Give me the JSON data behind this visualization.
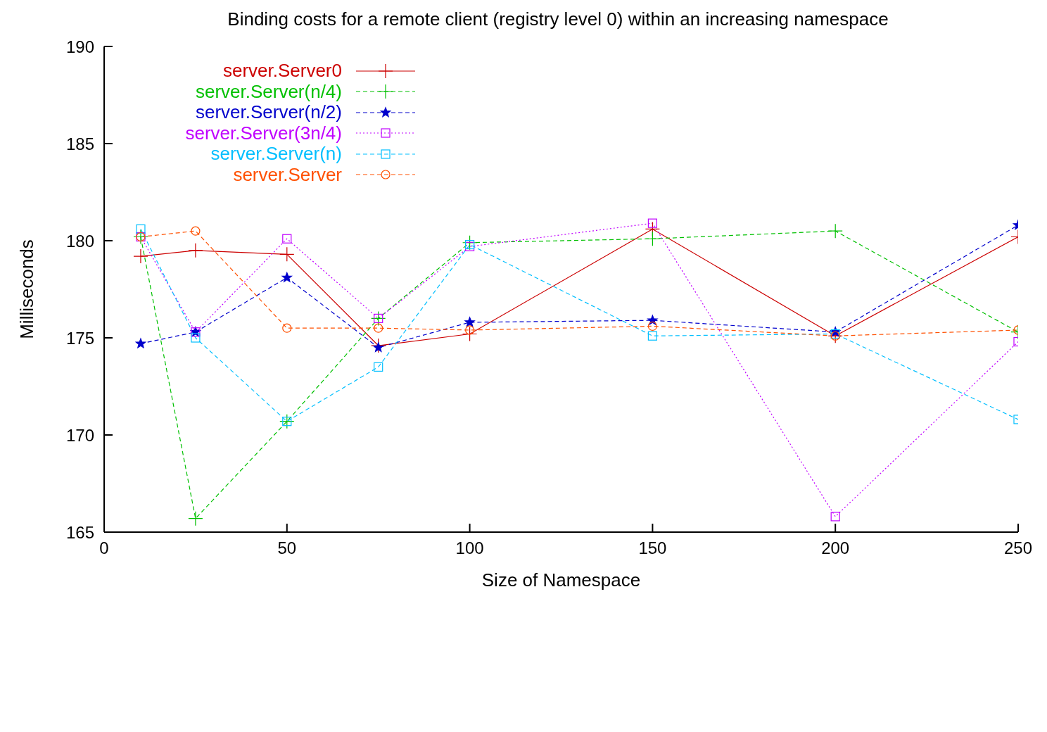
{
  "chart_data": {
    "type": "line",
    "title": "Binding costs for a remote client (registry level 0) within an increasing namespace",
    "xlabel": "Size of Namespace",
    "ylabel": "Milliseconds",
    "x": [
      10,
      25,
      50,
      75,
      100,
      150,
      200,
      250
    ],
    "xlim": [
      0,
      250
    ],
    "xticks": [
      0,
      50,
      100,
      150,
      200,
      250
    ],
    "ylim": [
      165,
      190
    ],
    "yticks": [
      165,
      170,
      175,
      180,
      185,
      190
    ],
    "grid": false,
    "legend": "top left",
    "series": [
      {
        "name": "server.Server0",
        "color": "#cc0000",
        "line_style": "solid",
        "marker": "cross",
        "values": [
          179.2,
          179.5,
          179.3,
          174.6,
          175.2,
          180.6,
          175.1,
          180.2
        ]
      },
      {
        "name": "server.Server(n/4)",
        "color": "#00c000",
        "line_style": "dashed",
        "marker": "cross",
        "values": [
          180.2,
          165.7,
          170.7,
          176.0,
          179.9,
          180.1,
          180.5,
          175.3
        ]
      },
      {
        "name": "server.Server(n/2)",
        "color": "#0000cc",
        "line_style": "dashed",
        "marker": "star",
        "values": [
          174.7,
          175.3,
          178.1,
          174.5,
          175.8,
          175.9,
          175.3,
          180.8
        ]
      },
      {
        "name": "server.Server(3n/4)",
        "color": "#c000ff",
        "line_style": "dotted",
        "marker": "square",
        "values": [
          180.2,
          175.3,
          180.1,
          176.0,
          179.7,
          180.9,
          165.8,
          174.8
        ]
      },
      {
        "name": "server.Server(n)",
        "color": "#00bfff",
        "line_style": "dashed",
        "marker": "square",
        "values": [
          180.6,
          175.0,
          170.7,
          173.5,
          179.8,
          175.1,
          175.2,
          170.8
        ]
      },
      {
        "name": "server.Server",
        "color": "#ff5000",
        "line_style": "dashed",
        "marker": "circle",
        "values": [
          180.2,
          180.5,
          175.5,
          175.5,
          175.4,
          175.6,
          175.1,
          175.4
        ]
      }
    ]
  }
}
